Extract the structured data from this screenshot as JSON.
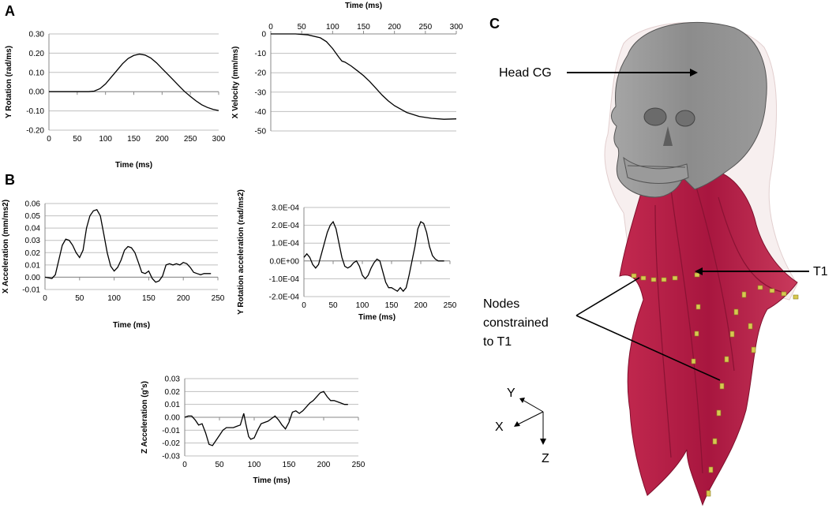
{
  "panels": {
    "a": "A",
    "b": "B",
    "c": "C"
  },
  "chart_data": [
    {
      "id": "y-rotation",
      "type": "line",
      "xlabel": "Time (ms)",
      "ylabel": "Y Rotation (rad/ms)",
      "xlim": [
        0,
        300
      ],
      "ylim": [
        -0.2,
        0.3
      ],
      "xticks": [
        "0",
        "50",
        "100",
        "150",
        "200",
        "250",
        "300"
      ],
      "yticks": [
        "0.30",
        "0.20",
        "0.10",
        "0.00",
        "-0.10",
        "-0.20"
      ],
      "x_axis_position": "bottom",
      "grid": true,
      "series": [
        {
          "x": [
            0,
            70,
            80,
            90,
            100,
            110,
            120,
            130,
            140,
            150,
            160,
            170,
            180,
            190,
            200,
            210,
            220,
            230,
            240,
            250,
            260,
            270,
            280,
            290,
            300
          ],
          "y": [
            0,
            0,
            0.003,
            0.015,
            0.04,
            0.075,
            0.11,
            0.145,
            0.172,
            0.188,
            0.195,
            0.19,
            0.175,
            0.15,
            0.12,
            0.09,
            0.06,
            0.03,
            0.0,
            -0.025,
            -0.048,
            -0.068,
            -0.082,
            -0.092,
            -0.098
          ]
        }
      ]
    },
    {
      "id": "x-velocity",
      "type": "line",
      "xlabel": "Time (ms)",
      "ylabel": "X Velocity (mm/ms)",
      "xlim": [
        0,
        300
      ],
      "ylim": [
        -50,
        0
      ],
      "xticks": [
        "0",
        "50",
        "100",
        "150",
        "200",
        "250",
        "300"
      ],
      "yticks": [
        "0",
        "-10",
        "-20",
        "-30",
        "-40",
        "-50"
      ],
      "x_axis_position": "top",
      "grid": true,
      "series": [
        {
          "x": [
            0,
            40,
            60,
            80,
            90,
            100,
            110,
            115,
            120,
            130,
            140,
            150,
            160,
            170,
            180,
            190,
            200,
            220,
            240,
            260,
            280,
            300
          ],
          "y": [
            0,
            0,
            -0.5,
            -2,
            -4,
            -7.5,
            -12,
            -14,
            -14.5,
            -16.5,
            -19,
            -21.5,
            -24.5,
            -28,
            -31.5,
            -34.5,
            -37,
            -40.5,
            -42.5,
            -43.5,
            -44,
            -43.8
          ]
        }
      ]
    },
    {
      "id": "x-acceleration",
      "type": "line",
      "xlabel": "Time (ms)",
      "ylabel": "X Acceleration (mm/ms2)",
      "xlim": [
        0,
        250
      ],
      "ylim": [
        -0.01,
        0.06
      ],
      "xticks": [
        "0",
        "50",
        "100",
        "150",
        "200",
        "250"
      ],
      "yticks": [
        "0.06",
        "0.05",
        "0.04",
        "0.03",
        "0.02",
        "0.01",
        "0.00",
        "-0.01"
      ],
      "x_axis_position": "bottom",
      "grid": true,
      "series": [
        {
          "x": [
            0,
            10,
            15,
            20,
            25,
            30,
            35,
            40,
            45,
            50,
            55,
            60,
            65,
            70,
            75,
            80,
            85,
            90,
            95,
            100,
            105,
            110,
            115,
            120,
            125,
            130,
            135,
            140,
            145,
            150,
            155,
            160,
            165,
            170,
            175,
            180,
            185,
            190,
            195,
            200,
            205,
            210,
            215,
            220,
            225,
            230,
            235,
            240
          ],
          "y": [
            0,
            -0.001,
            0.002,
            0.014,
            0.026,
            0.031,
            0.03,
            0.026,
            0.02,
            0.016,
            0.022,
            0.04,
            0.05,
            0.054,
            0.055,
            0.05,
            0.035,
            0.02,
            0.009,
            0.005,
            0.008,
            0.014,
            0.022,
            0.025,
            0.024,
            0.02,
            0.012,
            0.004,
            0.003,
            0.005,
            -0.001,
            -0.004,
            -0.003,
            0.001,
            0.01,
            0.011,
            0.01,
            0.011,
            0.01,
            0.012,
            0.011,
            0.008,
            0.004,
            0.003,
            0.002,
            0.003,
            0.003,
            0.003
          ]
        }
      ]
    },
    {
      "id": "y-rotation-acceleration",
      "type": "line",
      "xlabel": "Time (ms)",
      "ylabel": "Y Rotation acceleration (rad/ms2)",
      "xlim": [
        0,
        250
      ],
      "ylim": [
        -0.0002,
        0.0003
      ],
      "xticks": [
        "0",
        "50",
        "100",
        "150",
        "200",
        "250"
      ],
      "yticks": [
        "3.0E-04",
        "2.0E-04",
        "1.0E-04",
        "0.0E+00",
        "-1.0E-04",
        "-2.0E-04"
      ],
      "x_axis_position": "bottom",
      "grid": true,
      "series": [
        {
          "x": [
            0,
            5,
            10,
            15,
            20,
            25,
            30,
            35,
            40,
            45,
            50,
            55,
            60,
            65,
            70,
            75,
            80,
            85,
            90,
            95,
            100,
            105,
            110,
            115,
            120,
            125,
            130,
            135,
            140,
            145,
            150,
            155,
            160,
            165,
            170,
            175,
            180,
            185,
            190,
            195,
            200,
            205,
            210,
            215,
            220,
            225,
            230,
            235,
            240
          ],
          "y": [
            2e-05,
            4e-05,
            2e-05,
            -2e-05,
            -4e-05,
            -2e-05,
            4e-05,
            0.0001,
            0.00016,
            0.0002,
            0.00022,
            0.00018,
            0.0001,
            2e-05,
            -3e-05,
            -4e-05,
            -3e-05,
            -1e-05,
            0.0,
            -3e-05,
            -8e-05,
            -0.0001,
            -8e-05,
            -4e-05,
            -1e-05,
            1e-05,
            0.0,
            -6e-05,
            -0.00012,
            -0.00015,
            -0.00015,
            -0.00016,
            -0.00017,
            -0.00015,
            -0.00017,
            -0.00015,
            -8e-05,
            0.0,
            8e-05,
            0.00018,
            0.00022,
            0.00021,
            0.00016,
            8e-05,
            3e-05,
            1e-05,
            0.0,
            0.0,
            0.0
          ]
        }
      ]
    },
    {
      "id": "z-acceleration",
      "type": "line",
      "xlabel": "Time (ms)",
      "ylabel": "Z Acceleration (g's)",
      "xlim": [
        0,
        250
      ],
      "ylim": [
        -0.03,
        0.03
      ],
      "xticks": [
        "0",
        "50",
        "100",
        "150",
        "200",
        "250"
      ],
      "yticks": [
        "0.03",
        "0.02",
        "0.01",
        "0.00",
        "-0.01",
        "-0.02",
        "-0.03"
      ],
      "x_axis_position": "bottom",
      "grid": true,
      "series": [
        {
          "x": [
            0,
            5,
            10,
            15,
            20,
            25,
            30,
            35,
            40,
            45,
            50,
            55,
            60,
            65,
            70,
            75,
            80,
            85,
            88,
            92,
            95,
            100,
            105,
            110,
            115,
            120,
            125,
            130,
            135,
            140,
            145,
            150,
            155,
            160,
            165,
            170,
            175,
            180,
            185,
            190,
            195,
            200,
            205,
            210,
            215,
            220,
            225,
            230,
            235
          ],
          "y": [
            0.0,
            0.001,
            0.001,
            -0.002,
            -0.006,
            -0.005,
            -0.012,
            -0.021,
            -0.022,
            -0.018,
            -0.014,
            -0.01,
            -0.008,
            -0.008,
            -0.008,
            -0.007,
            -0.006,
            0.003,
            -0.005,
            -0.015,
            -0.017,
            -0.016,
            -0.01,
            -0.005,
            -0.004,
            -0.003,
            -0.001,
            0.001,
            -0.002,
            -0.006,
            -0.009,
            -0.004,
            0.004,
            0.005,
            0.003,
            0.005,
            0.008,
            0.011,
            0.013,
            0.016,
            0.019,
            0.02,
            0.016,
            0.013,
            0.013,
            0.012,
            0.011,
            0.01,
            0.01
          ]
        }
      ]
    }
  ],
  "figure_c": {
    "labels": {
      "head_cg": "Head CG",
      "t1": "T1",
      "nodes_line1": "Nodes",
      "nodes_line2": "constrained",
      "nodes_line3": "to T1"
    },
    "axes": {
      "y": "Y",
      "x": "X",
      "z": "Z"
    },
    "colors": {
      "skull": "#8c8c8c",
      "muscle": "#b21e4a",
      "soft_tissue": "#e6d6d6",
      "nodes": "#d8c850"
    }
  }
}
